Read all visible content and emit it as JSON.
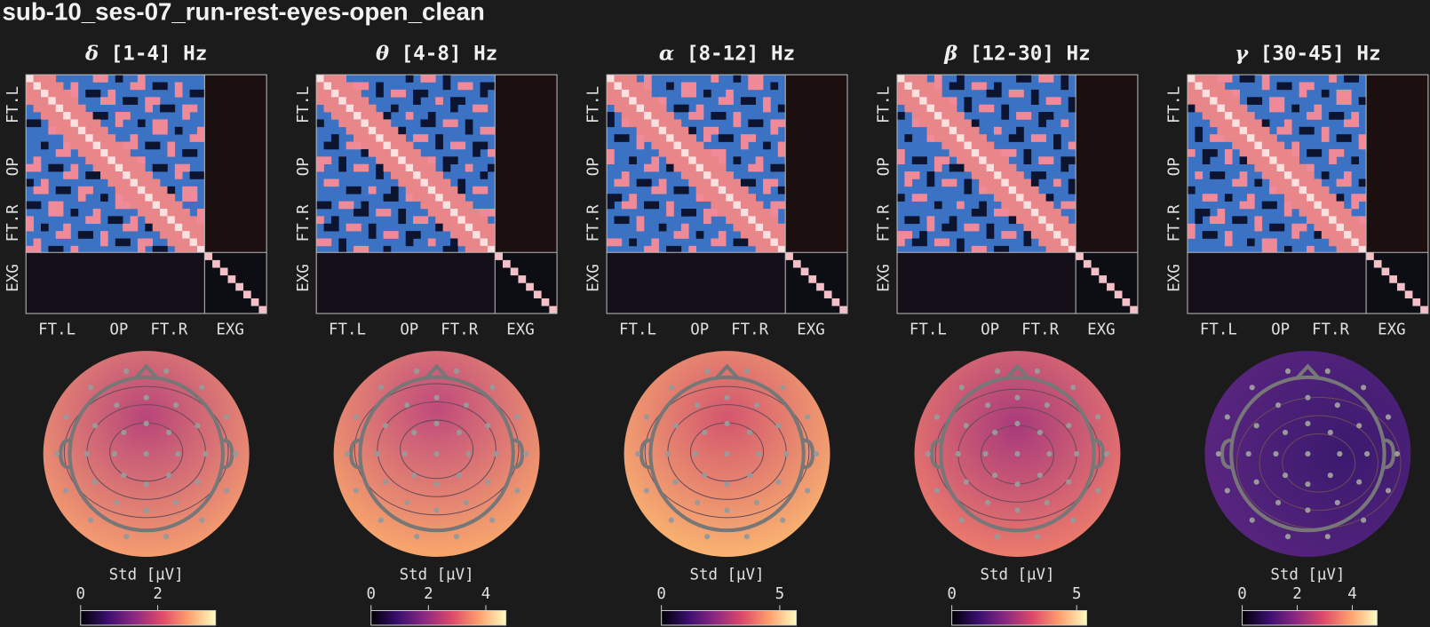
{
  "title": "sub-10_ses-07_run-rest-eyes-open_clean",
  "panels": [
    {
      "symbol": "δ",
      "range": "[1-4] Hz",
      "row_labels": [
        "FT.L",
        "OP",
        "FT.R",
        "EXG"
      ],
      "col_labels": [
        "FT.L",
        "OP",
        "FT.R",
        "EXG"
      ],
      "colorbar_label": "Std [µV]",
      "colorbar_lim": [
        0,
        3.5
      ],
      "colorbar_ticks": [
        0,
        2
      ]
    },
    {
      "symbol": "θ",
      "range": "[4-8] Hz",
      "row_labels": [
        "FT.L",
        "OP",
        "FT.R",
        "EXG"
      ],
      "col_labels": [
        "FT.L",
        "OP",
        "FT.R",
        "EXG"
      ],
      "colorbar_label": "Std [µV]",
      "colorbar_lim": [
        0,
        4.7
      ],
      "colorbar_ticks": [
        0,
        2,
        4
      ]
    },
    {
      "symbol": "α",
      "range": "[8-12] Hz",
      "row_labels": [
        "FT.L",
        "OP",
        "FT.R",
        "EXG"
      ],
      "col_labels": [
        "FT.L",
        "OP",
        "FT.R",
        "EXG"
      ],
      "colorbar_label": "Std [µV]",
      "colorbar_lim": [
        0,
        5.7
      ],
      "colorbar_ticks": [
        0,
        5
      ]
    },
    {
      "symbol": "β",
      "range": "[12-30] Hz",
      "row_labels": [
        "FT.L",
        "OP",
        "FT.R",
        "EXG"
      ],
      "col_labels": [
        "FT.L",
        "OP",
        "FT.R",
        "EXG"
      ],
      "colorbar_label": "Std [µV]",
      "colorbar_lim": [
        0,
        5.4
      ],
      "colorbar_ticks": [
        0,
        5
      ]
    },
    {
      "symbol": "γ",
      "range": "[30-45] Hz",
      "row_labels": [
        "FT.L",
        "OP",
        "FT.R",
        "EXG"
      ],
      "col_labels": [
        "FT.L",
        "OP",
        "FT.R",
        "EXG"
      ],
      "colorbar_label": "Std [µV]",
      "colorbar_lim": [
        0,
        4.9
      ],
      "colorbar_ticks": [
        0,
        2,
        4
      ]
    }
  ]
}
